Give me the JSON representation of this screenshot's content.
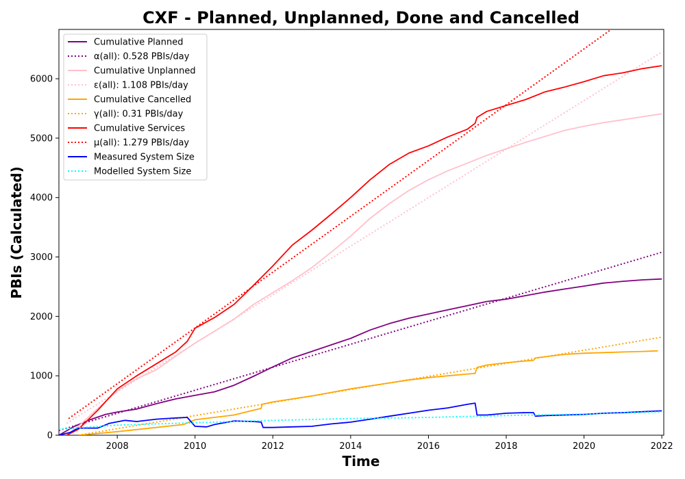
{
  "chart_data": {
    "type": "line",
    "title": "CXF - Planned, Unplanned, Done  and Cancelled",
    "xlabel": "Time",
    "ylabel": "PBIs (Calculated)",
    "xlim": [
      2006.5,
      2022.05
    ],
    "ylim": [
      0,
      6830
    ],
    "x_ticks": [
      2008,
      2010,
      2012,
      2014,
      2016,
      2018,
      2020,
      2022
    ],
    "y_ticks": [
      0,
      1000,
      2000,
      3000,
      4000,
      5000,
      6000
    ],
    "grid": false,
    "legend_position": "top-left",
    "series": [
      {
        "name": "Cumulative Planned",
        "color": "#800080",
        "style": "solid",
        "points": [
          [
            2006.5,
            0
          ],
          [
            2006.9,
            150
          ],
          [
            2007.3,
            260
          ],
          [
            2007.7,
            350
          ],
          [
            2008.0,
            390
          ],
          [
            2008.5,
            440
          ],
          [
            2009.0,
            530
          ],
          [
            2009.5,
            610
          ],
          [
            2010.0,
            670
          ],
          [
            2010.5,
            730
          ],
          [
            2011.0,
            840
          ],
          [
            2011.5,
            990
          ],
          [
            2012.0,
            1150
          ],
          [
            2012.5,
            1300
          ],
          [
            2013.0,
            1410
          ],
          [
            2013.5,
            1520
          ],
          [
            2014.0,
            1630
          ],
          [
            2014.5,
            1770
          ],
          [
            2015.0,
            1880
          ],
          [
            2015.5,
            1970
          ],
          [
            2016.0,
            2040
          ],
          [
            2016.5,
            2110
          ],
          [
            2017.0,
            2180
          ],
          [
            2017.5,
            2250
          ],
          [
            2018.0,
            2290
          ],
          [
            2018.5,
            2350
          ],
          [
            2019.0,
            2410
          ],
          [
            2019.5,
            2460
          ],
          [
            2020.0,
            2510
          ],
          [
            2020.5,
            2560
          ],
          [
            2021.0,
            2590
          ],
          [
            2021.5,
            2615
          ],
          [
            2022.0,
            2630
          ]
        ]
      },
      {
        "name": "α(all): 0.528 PBIs/day",
        "color": "#800080",
        "style": "dotted",
        "points": [
          [
            2006.5,
            80
          ],
          [
            2022.0,
            3080
          ]
        ]
      },
      {
        "name": "Cumulative Unplanned",
        "color": "#FFC0CB",
        "style": "solid",
        "points": [
          [
            2006.7,
            0
          ],
          [
            2007.0,
            150
          ],
          [
            2007.5,
            450
          ],
          [
            2008.0,
            750
          ],
          [
            2008.5,
            950
          ],
          [
            2009.0,
            1100
          ],
          [
            2009.5,
            1330
          ],
          [
            2010.0,
            1550
          ],
          [
            2010.5,
            1750
          ],
          [
            2011.0,
            1950
          ],
          [
            2011.5,
            2200
          ],
          [
            2012.0,
            2400
          ],
          [
            2012.5,
            2600
          ],
          [
            2013.0,
            2820
          ],
          [
            2013.5,
            3080
          ],
          [
            2014.0,
            3350
          ],
          [
            2014.5,
            3650
          ],
          [
            2015.0,
            3900
          ],
          [
            2015.5,
            4120
          ],
          [
            2016.0,
            4300
          ],
          [
            2016.5,
            4450
          ],
          [
            2017.0,
            4580
          ],
          [
            2017.5,
            4710
          ],
          [
            2018.0,
            4820
          ],
          [
            2018.5,
            4930
          ],
          [
            2019.0,
            5030
          ],
          [
            2019.5,
            5130
          ],
          [
            2020.0,
            5200
          ],
          [
            2020.5,
            5260
          ],
          [
            2021.0,
            5310
          ],
          [
            2021.5,
            5360
          ],
          [
            2022.0,
            5410
          ]
        ]
      },
      {
        "name": "ε(all): 1.108 PBIs/day",
        "color": "#FFC0CB",
        "style": "dotted",
        "points": [
          [
            2006.7,
            200
          ],
          [
            2022.0,
            6450
          ]
        ]
      },
      {
        "name": "Cumulative Cancelled",
        "color": "#FFA500",
        "style": "solid",
        "points": [
          [
            2007.0,
            0
          ],
          [
            2008.0,
            60
          ],
          [
            2009.0,
            130
          ],
          [
            2009.7,
            180
          ],
          [
            2010.0,
            260
          ],
          [
            2010.5,
            300
          ],
          [
            2011.0,
            340
          ],
          [
            2011.5,
            420
          ],
          [
            2011.7,
            450
          ],
          [
            2011.72,
            520
          ],
          [
            2012.0,
            560
          ],
          [
            2012.5,
            610
          ],
          [
            2013.0,
            660
          ],
          [
            2013.5,
            720
          ],
          [
            2014.0,
            780
          ],
          [
            2014.5,
            830
          ],
          [
            2015.0,
            880
          ],
          [
            2015.5,
            930
          ],
          [
            2016.0,
            970
          ],
          [
            2016.5,
            1000
          ],
          [
            2017.0,
            1030
          ],
          [
            2017.2,
            1040
          ],
          [
            2017.25,
            1140
          ],
          [
            2017.5,
            1180
          ],
          [
            2018.0,
            1220
          ],
          [
            2018.5,
            1250
          ],
          [
            2018.7,
            1260
          ],
          [
            2018.75,
            1300
          ],
          [
            2019.0,
            1320
          ],
          [
            2019.5,
            1360
          ],
          [
            2020.0,
            1380
          ],
          [
            2020.5,
            1390
          ],
          [
            2021.0,
            1400
          ],
          [
            2021.5,
            1410
          ],
          [
            2021.9,
            1420
          ]
        ]
      },
      {
        "name": "γ(all): 0.31 PBIs/day",
        "color": "#FFA500",
        "style": "dotted",
        "points": [
          [
            2007.0,
            0
          ],
          [
            2022.0,
            1650
          ]
        ]
      },
      {
        "name": "Cumulative Services",
        "color": "#FF0000",
        "style": "solid",
        "points": [
          [
            2006.7,
            0
          ],
          [
            2007.0,
            100
          ],
          [
            2007.5,
            420
          ],
          [
            2008.0,
            780
          ],
          [
            2008.5,
            1000
          ],
          [
            2009.0,
            1200
          ],
          [
            2009.5,
            1400
          ],
          [
            2009.8,
            1580
          ],
          [
            2010.0,
            1800
          ],
          [
            2010.5,
            1980
          ],
          [
            2011.0,
            2200
          ],
          [
            2011.5,
            2520
          ],
          [
            2012.0,
            2850
          ],
          [
            2012.5,
            3200
          ],
          [
            2013.0,
            3450
          ],
          [
            2013.5,
            3720
          ],
          [
            2014.0,
            4000
          ],
          [
            2014.5,
            4300
          ],
          [
            2015.0,
            4560
          ],
          [
            2015.5,
            4750
          ],
          [
            2016.0,
            4870
          ],
          [
            2016.5,
            5020
          ],
          [
            2017.0,
            5150
          ],
          [
            2017.2,
            5250
          ],
          [
            2017.25,
            5350
          ],
          [
            2017.5,
            5450
          ],
          [
            2018.0,
            5550
          ],
          [
            2018.5,
            5650
          ],
          [
            2019.0,
            5780
          ],
          [
            2019.5,
            5860
          ],
          [
            2020.0,
            5950
          ],
          [
            2020.5,
            6050
          ],
          [
            2021.0,
            6100
          ],
          [
            2021.5,
            6170
          ],
          [
            2022.0,
            6220
          ]
        ]
      },
      {
        "name": "μ(all): 1.279 PBIs/day",
        "color": "#FF0000",
        "style": "dotted",
        "points": [
          [
            2006.75,
            280
          ],
          [
            2020.7,
            6830
          ]
        ]
      },
      {
        "name": "Measured System Size",
        "color": "#0000FF",
        "style": "solid",
        "points": [
          [
            2006.5,
            0
          ],
          [
            2006.8,
            50
          ],
          [
            2007.0,
            120
          ],
          [
            2007.5,
            120
          ],
          [
            2007.8,
            200
          ],
          [
            2008.2,
            250
          ],
          [
            2008.5,
            230
          ],
          [
            2009.0,
            270
          ],
          [
            2009.5,
            290
          ],
          [
            2009.8,
            300
          ],
          [
            2010.0,
            150
          ],
          [
            2010.3,
            140
          ],
          [
            2010.5,
            180
          ],
          [
            2011.0,
            240
          ],
          [
            2011.5,
            230
          ],
          [
            2011.7,
            220
          ],
          [
            2011.75,
            130
          ],
          [
            2012.0,
            130
          ],
          [
            2012.5,
            140
          ],
          [
            2013.0,
            150
          ],
          [
            2013.5,
            190
          ],
          [
            2014.0,
            220
          ],
          [
            2014.5,
            270
          ],
          [
            2015.0,
            320
          ],
          [
            2015.5,
            370
          ],
          [
            2016.0,
            420
          ],
          [
            2016.5,
            460
          ],
          [
            2017.0,
            520
          ],
          [
            2017.2,
            540
          ],
          [
            2017.25,
            340
          ],
          [
            2017.5,
            340
          ],
          [
            2018.0,
            370
          ],
          [
            2018.5,
            380
          ],
          [
            2018.7,
            380
          ],
          [
            2018.75,
            320
          ],
          [
            2019.0,
            330
          ],
          [
            2019.5,
            340
          ],
          [
            2020.0,
            350
          ],
          [
            2020.5,
            370
          ],
          [
            2021.0,
            380
          ],
          [
            2021.5,
            395
          ],
          [
            2022.0,
            410
          ]
        ]
      },
      {
        "name": "Modelled System Size",
        "color": "#00FFFF",
        "style": "dotted",
        "points": [
          [
            2006.5,
            100
          ],
          [
            2008.0,
            170
          ],
          [
            2010.0,
            210
          ],
          [
            2012.0,
            250
          ],
          [
            2014.0,
            280
          ],
          [
            2016.0,
            300
          ],
          [
            2018.0,
            330
          ],
          [
            2020.0,
            355
          ],
          [
            2022.0,
            395
          ]
        ]
      }
    ]
  }
}
